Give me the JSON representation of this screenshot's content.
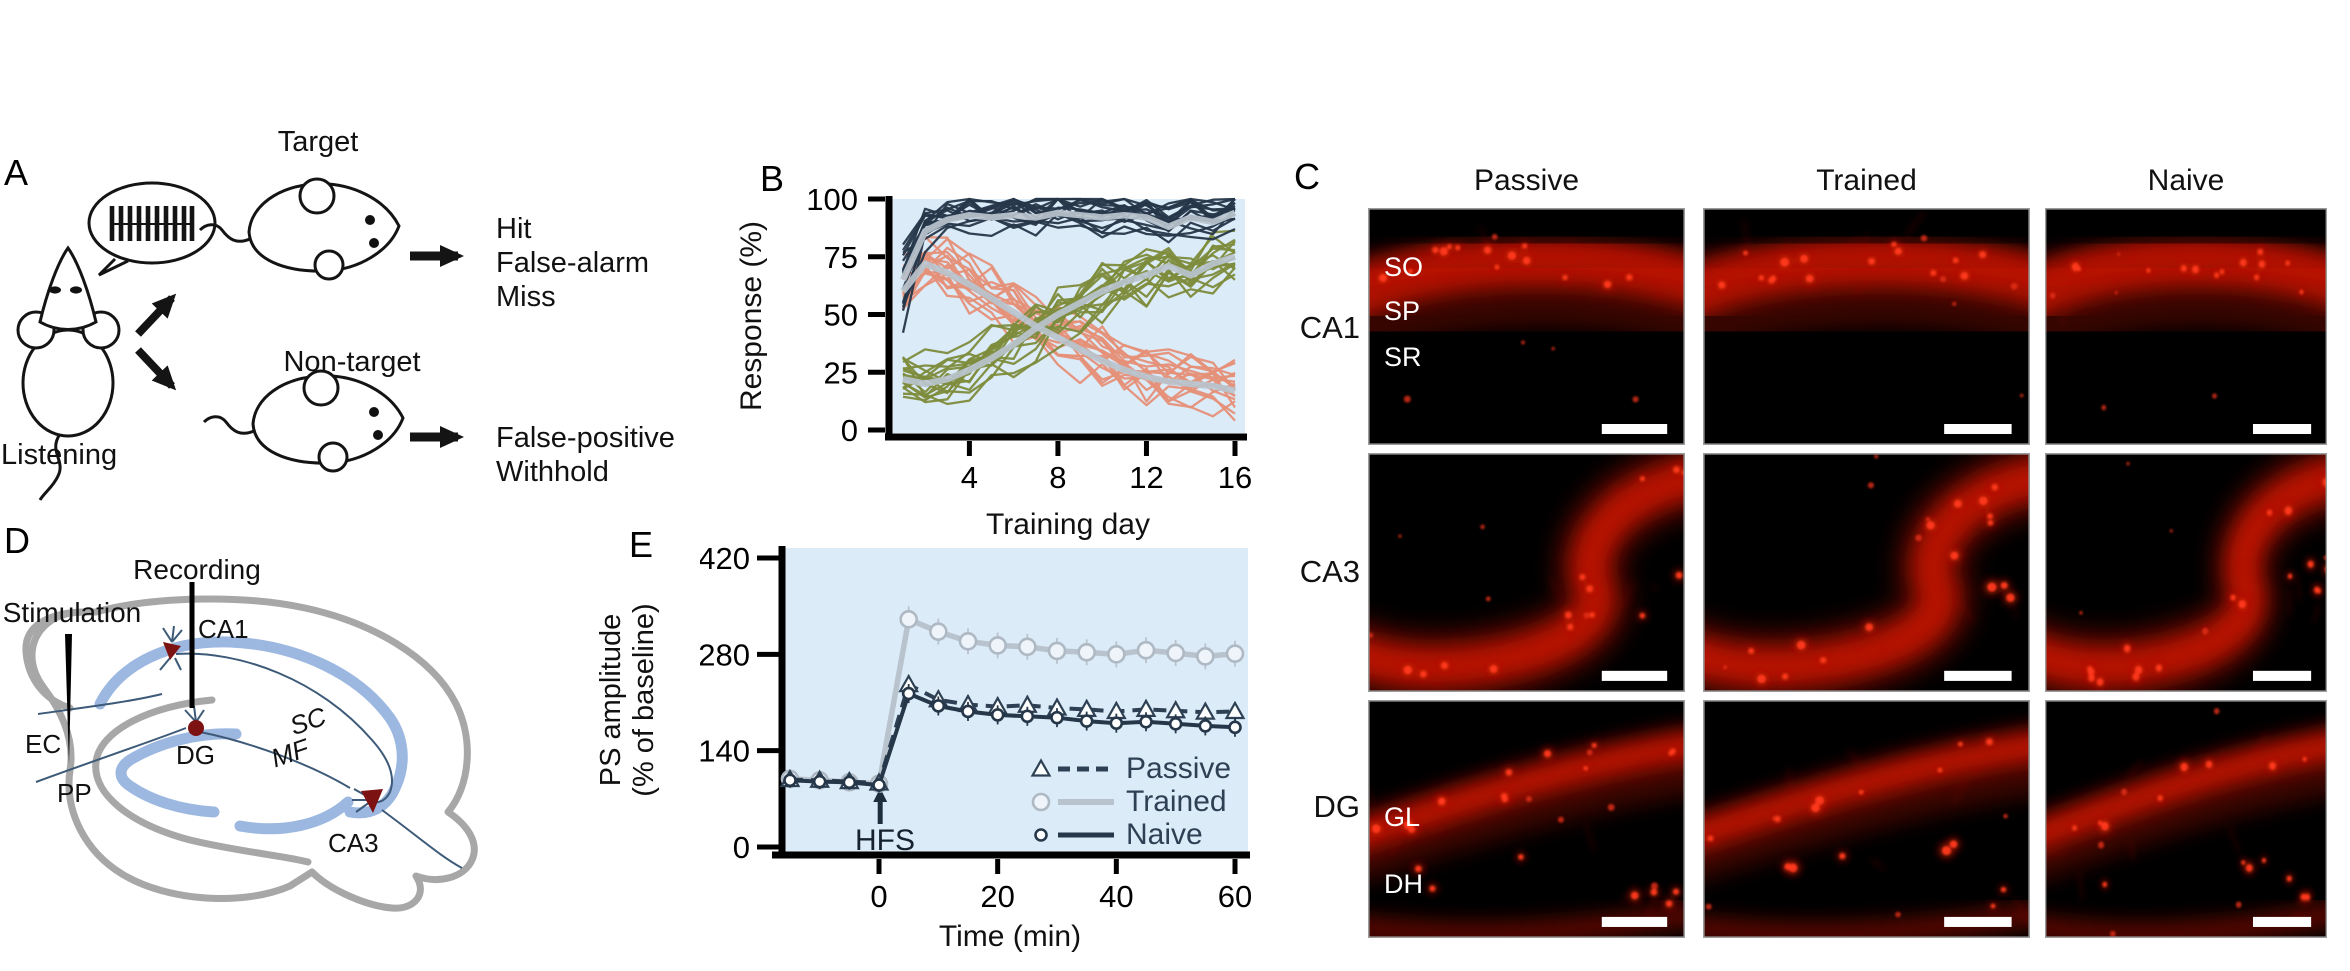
{
  "figure": {
    "background": "#ffffff"
  },
  "colors": {
    "plot_bg": "#dcebf8",
    "mean_line": "#b9c3cd",
    "micrograph_red": "#e81500",
    "neuron_red": "#7d1212",
    "band_blue": "#9cb8e0",
    "outline_gray": "#a7a7a7",
    "legend_text": "#2e4154"
  },
  "panel_a": {
    "label": "A",
    "listening_label": "Listening",
    "target_label": "Target",
    "non_target_label": "Non-target",
    "target_outcomes": [
      "Hit",
      "False-alarm",
      "Miss"
    ],
    "non_target_outcomes": [
      "False-positive",
      "Withhold"
    ]
  },
  "panel_b": {
    "label": "B",
    "chart_data": {
      "type": "line",
      "title": "",
      "xlabel": "Training day",
      "ylabel": "Response (%)",
      "x": [
        1,
        2,
        3,
        4,
        5,
        6,
        7,
        8,
        9,
        10,
        11,
        12,
        13,
        14,
        15,
        16
      ],
      "xticks": [
        4,
        8,
        12,
        16
      ],
      "yticks": [
        0,
        25,
        50,
        75,
        100
      ],
      "ylim": [
        0,
        100
      ],
      "xlim": [
        0.5,
        16.5
      ],
      "grid": false,
      "plot_bg": "#dcebf8",
      "mean_line_color": "#b9c3cd",
      "series": [
        {
          "name": "hit",
          "color": "#26374a",
          "n_individual": 18,
          "noise": 6,
          "start_spread": 16,
          "mean": [
            65,
            86,
            91,
            93,
            92,
            93,
            92,
            94,
            93,
            92,
            93,
            92,
            88,
            92,
            90,
            94
          ]
        },
        {
          "name": "false-alarm",
          "color": "#e59078",
          "n_individual": 18,
          "noise": 9,
          "start_spread": 8,
          "mean": [
            60,
            72,
            68,
            63,
            57,
            51,
            45,
            40,
            35,
            30,
            26,
            23,
            21,
            20,
            19,
            17
          ]
        },
        {
          "name": "withhold",
          "color": "#7d8c3c",
          "n_individual": 18,
          "noise": 9,
          "start_spread": 6,
          "mean": [
            22,
            20,
            22,
            26,
            31,
            37,
            44,
            50,
            55,
            60,
            64,
            67,
            71,
            67,
            72,
            75
          ]
        }
      ]
    }
  },
  "panel_c": {
    "label": "C",
    "column_headers": [
      "Passive",
      "Trained",
      "Naive"
    ],
    "row_labels": [
      "CA1",
      "CA3",
      "DG"
    ],
    "region_labels": {
      "CA1": [
        "SO",
        "SP",
        "SR"
      ],
      "DG": [
        "GL",
        "DH"
      ]
    }
  },
  "panel_d": {
    "label": "D",
    "labels": {
      "recording": "Recording",
      "stimulation": "Stimulation",
      "ca1": "CA1",
      "sc": "SC",
      "mf": "MF",
      "ec": "EC",
      "dg": "DG",
      "pp": "PP",
      "ca3": "CA3"
    }
  },
  "panel_e": {
    "label": "E",
    "chart_data": {
      "type": "line",
      "xlabel": "Time (min)",
      "ylabel_line1": "PS amplitude",
      "ylabel_line2": "(% of baseline)",
      "hfs_label": "HFS",
      "x": [
        -15,
        -10,
        -5,
        0,
        5,
        10,
        15,
        20,
        25,
        30,
        35,
        40,
        45,
        50,
        55,
        60
      ],
      "xticks": [
        0,
        20,
        40,
        60
      ],
      "yticks": [
        0,
        140,
        280,
        420
      ],
      "ylim": [
        0,
        420
      ],
      "grid": false,
      "plot_bg": "#dcebf8",
      "legend_position": "inside bottom-right",
      "series": [
        {
          "name": "Passive",
          "marker": "triangle",
          "line_style": "dashed",
          "color": "#2e4154",
          "marker_fill": "#fdfefe",
          "err": 8,
          "values": [
            98,
            97,
            95,
            93,
            236,
            214,
            207,
            204,
            206,
            202,
            200,
            197,
            200,
            198,
            196,
            197
          ]
        },
        {
          "name": "Trained",
          "marker": "circle",
          "line_style": "solid",
          "color": "#b9c3cd",
          "marker_fill": "#eef4f9",
          "err": 13,
          "values": [
            99,
            97,
            94,
            92,
            331,
            313,
            299,
            293,
            291,
            285,
            283,
            280,
            286,
            282,
            277,
            281
          ]
        },
        {
          "name": "Naive",
          "marker": "circle-small",
          "line_style": "solid",
          "color": "#26374a",
          "marker_fill": "#ffffff",
          "err": 8,
          "values": [
            97,
            95,
            94,
            90,
            223,
            205,
            197,
            192,
            190,
            188,
            183,
            180,
            182,
            179,
            176,
            174
          ]
        }
      ]
    }
  }
}
